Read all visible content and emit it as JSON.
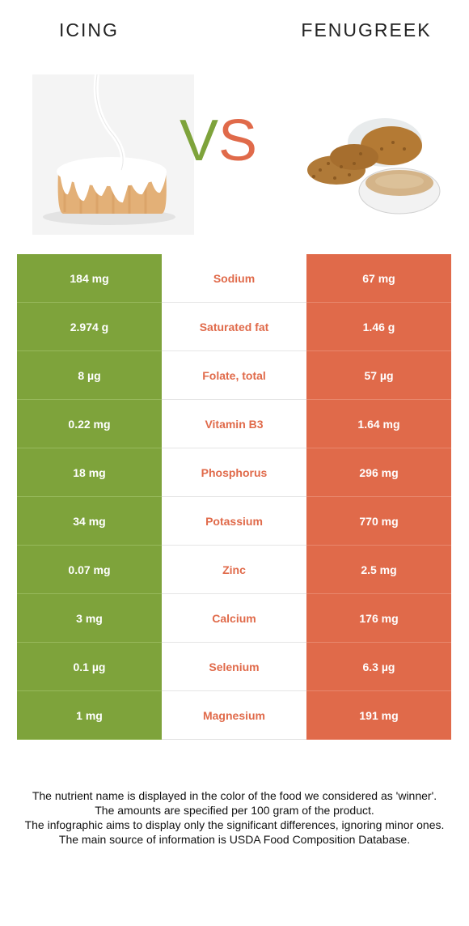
{
  "header": {
    "left_title": "ICING",
    "right_title": "FENUGREEK",
    "vs_v": "V",
    "vs_s": "S"
  },
  "colors": {
    "winner_left": "#7ea33b",
    "winner_right": "#e06a4a"
  },
  "rows": [
    {
      "left": "184 mg",
      "nutrient": "Sodium",
      "right": "67 mg"
    },
    {
      "left": "2.974 g",
      "nutrient": "Saturated fat",
      "right": "1.46 g"
    },
    {
      "left": "8 µg",
      "nutrient": "Folate, total",
      "right": "57 µg"
    },
    {
      "left": "0.22 mg",
      "nutrient": "Vitamin B3",
      "right": "1.64 mg"
    },
    {
      "left": "18 mg",
      "nutrient": "Phosphorus",
      "right": "296 mg"
    },
    {
      "left": "34 mg",
      "nutrient": "Potassium",
      "right": "770 mg"
    },
    {
      "left": "0.07 mg",
      "nutrient": "Zinc",
      "right": "2.5 mg"
    },
    {
      "left": "3 mg",
      "nutrient": "Calcium",
      "right": "176 mg"
    },
    {
      "left": "0.1 µg",
      "nutrient": "Selenium",
      "right": "6.3 µg"
    },
    {
      "left": "1 mg",
      "nutrient": "Magnesium",
      "right": "191 mg"
    }
  ],
  "footer": {
    "line1": "The nutrient name is displayed in the color of the food we considered as 'winner'.",
    "line2": "The amounts are specified per 100 gram of the product.",
    "line3": "The infographic aims to display only the significant differences, ignoring minor ones.",
    "line4": "The main source of information is USDA Food Composition Database."
  }
}
